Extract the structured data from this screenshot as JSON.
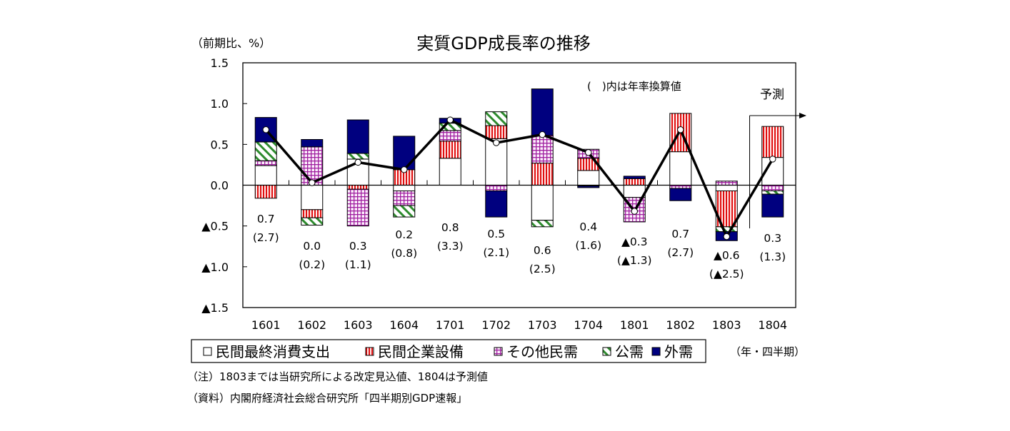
{
  "chart_data": {
    "type": "bar",
    "subtype": "stacked-bar-with-line",
    "title": "実質GDP成長率の推移",
    "ylabel": "（前期比、%）",
    "xlabel": "（年・四半期）",
    "ylim": [
      -1.5,
      1.5
    ],
    "yticks": [
      1.5,
      1.0,
      0.5,
      0.0,
      -0.5,
      -1.0,
      -1.5
    ],
    "ytick_labels": [
      "1.5",
      "1.0",
      "0.5",
      "0.0",
      "▲0.5",
      "▲1.0",
      "▲1.5"
    ],
    "grid": false,
    "categories": [
      "1601",
      "1602",
      "1603",
      "1604",
      "1701",
      "1702",
      "1703",
      "1704",
      "1801",
      "1802",
      "1803",
      "1804"
    ],
    "series": [
      {
        "name": "民間最終消費支出",
        "pattern": "white",
        "values": [
          0.24,
          -0.3,
          0.32,
          -0.07,
          0.33,
          0.57,
          -0.43,
          0.18,
          -0.15,
          0.41,
          -0.07,
          0.34
        ]
      },
      {
        "name": "民間企業設備",
        "pattern": "red-vertical-stripes",
        "values": [
          -0.16,
          -0.1,
          -0.05,
          0.19,
          0.21,
          0.16,
          0.27,
          0.15,
          0.08,
          0.47,
          -0.44,
          0.38
        ]
      },
      {
        "name": "その他民需",
        "pattern": "purple-grid",
        "values": [
          0.06,
          0.47,
          -0.45,
          -0.18,
          0.13,
          -0.07,
          0.34,
          0.11,
          -0.3,
          -0.04,
          0.05,
          -0.07
        ]
      },
      {
        "name": "公需",
        "pattern": "green-diagonal",
        "values": [
          0.23,
          -0.09,
          0.07,
          -0.14,
          0.09,
          0.17,
          -0.08,
          -0.01,
          0.0,
          0.0,
          -0.06,
          -0.04
        ]
      },
      {
        "name": "外需",
        "pattern": "navy-solid",
        "values": [
          0.3,
          0.09,
          0.41,
          0.41,
          0.06,
          -0.32,
          0.57,
          -0.02,
          0.03,
          -0.15,
          -0.11,
          -0.28
        ]
      }
    ],
    "line": {
      "name": "実質GDP成長率",
      "values": [
        0.68,
        0.03,
        0.28,
        0.19,
        0.8,
        0.52,
        0.62,
        0.4,
        -0.32,
        0.68,
        -0.63,
        0.32
      ]
    },
    "data_labels": [
      {
        "value": "0.7",
        "annualized": "(2.7)"
      },
      {
        "value": "0.0",
        "annualized": "(0.2)"
      },
      {
        "value": "0.3",
        "annualized": "(1.1)"
      },
      {
        "value": "0.2",
        "annualized": "(0.8)"
      },
      {
        "value": "0.8",
        "annualized": "(3.3)"
      },
      {
        "value": "0.5",
        "annualized": "(2.1)"
      },
      {
        "value": "0.6",
        "annualized": "(2.5)"
      },
      {
        "value": "0.4",
        "annualized": "(1.6)"
      },
      {
        "value": "▲0.3",
        "annualized": "(▲1.3)"
      },
      {
        "value": "0.7",
        "annualized": "(2.7)"
      },
      {
        "value": "▲0.6",
        "annualized": "(▲2.5)"
      },
      {
        "value": "0.3",
        "annualized": "(1.3)"
      }
    ],
    "annotations": {
      "annualized_note": "(　)内は年率換算値",
      "forecast_label": "予測",
      "forecast_start_category": "1804"
    },
    "legend": {
      "placement": "bottom",
      "entries": [
        "民間最終消費支出",
        "民間企業設備",
        "その他民需",
        "公需",
        "外需"
      ]
    },
    "colors": {
      "navy": "#00007f",
      "red": "#e01010",
      "red_bg": "#ffe8e8",
      "purple": "#a01fa0",
      "purple_bg": "#fbeefb",
      "green": "#2e8b2e",
      "line": "#000000"
    }
  },
  "notes": {
    "note": "（注）1803までは当研究所による改定見込値、1804は予測値",
    "source": "（資料）内閣府経済社会総合研究所「四半期別GDP速報」"
  }
}
